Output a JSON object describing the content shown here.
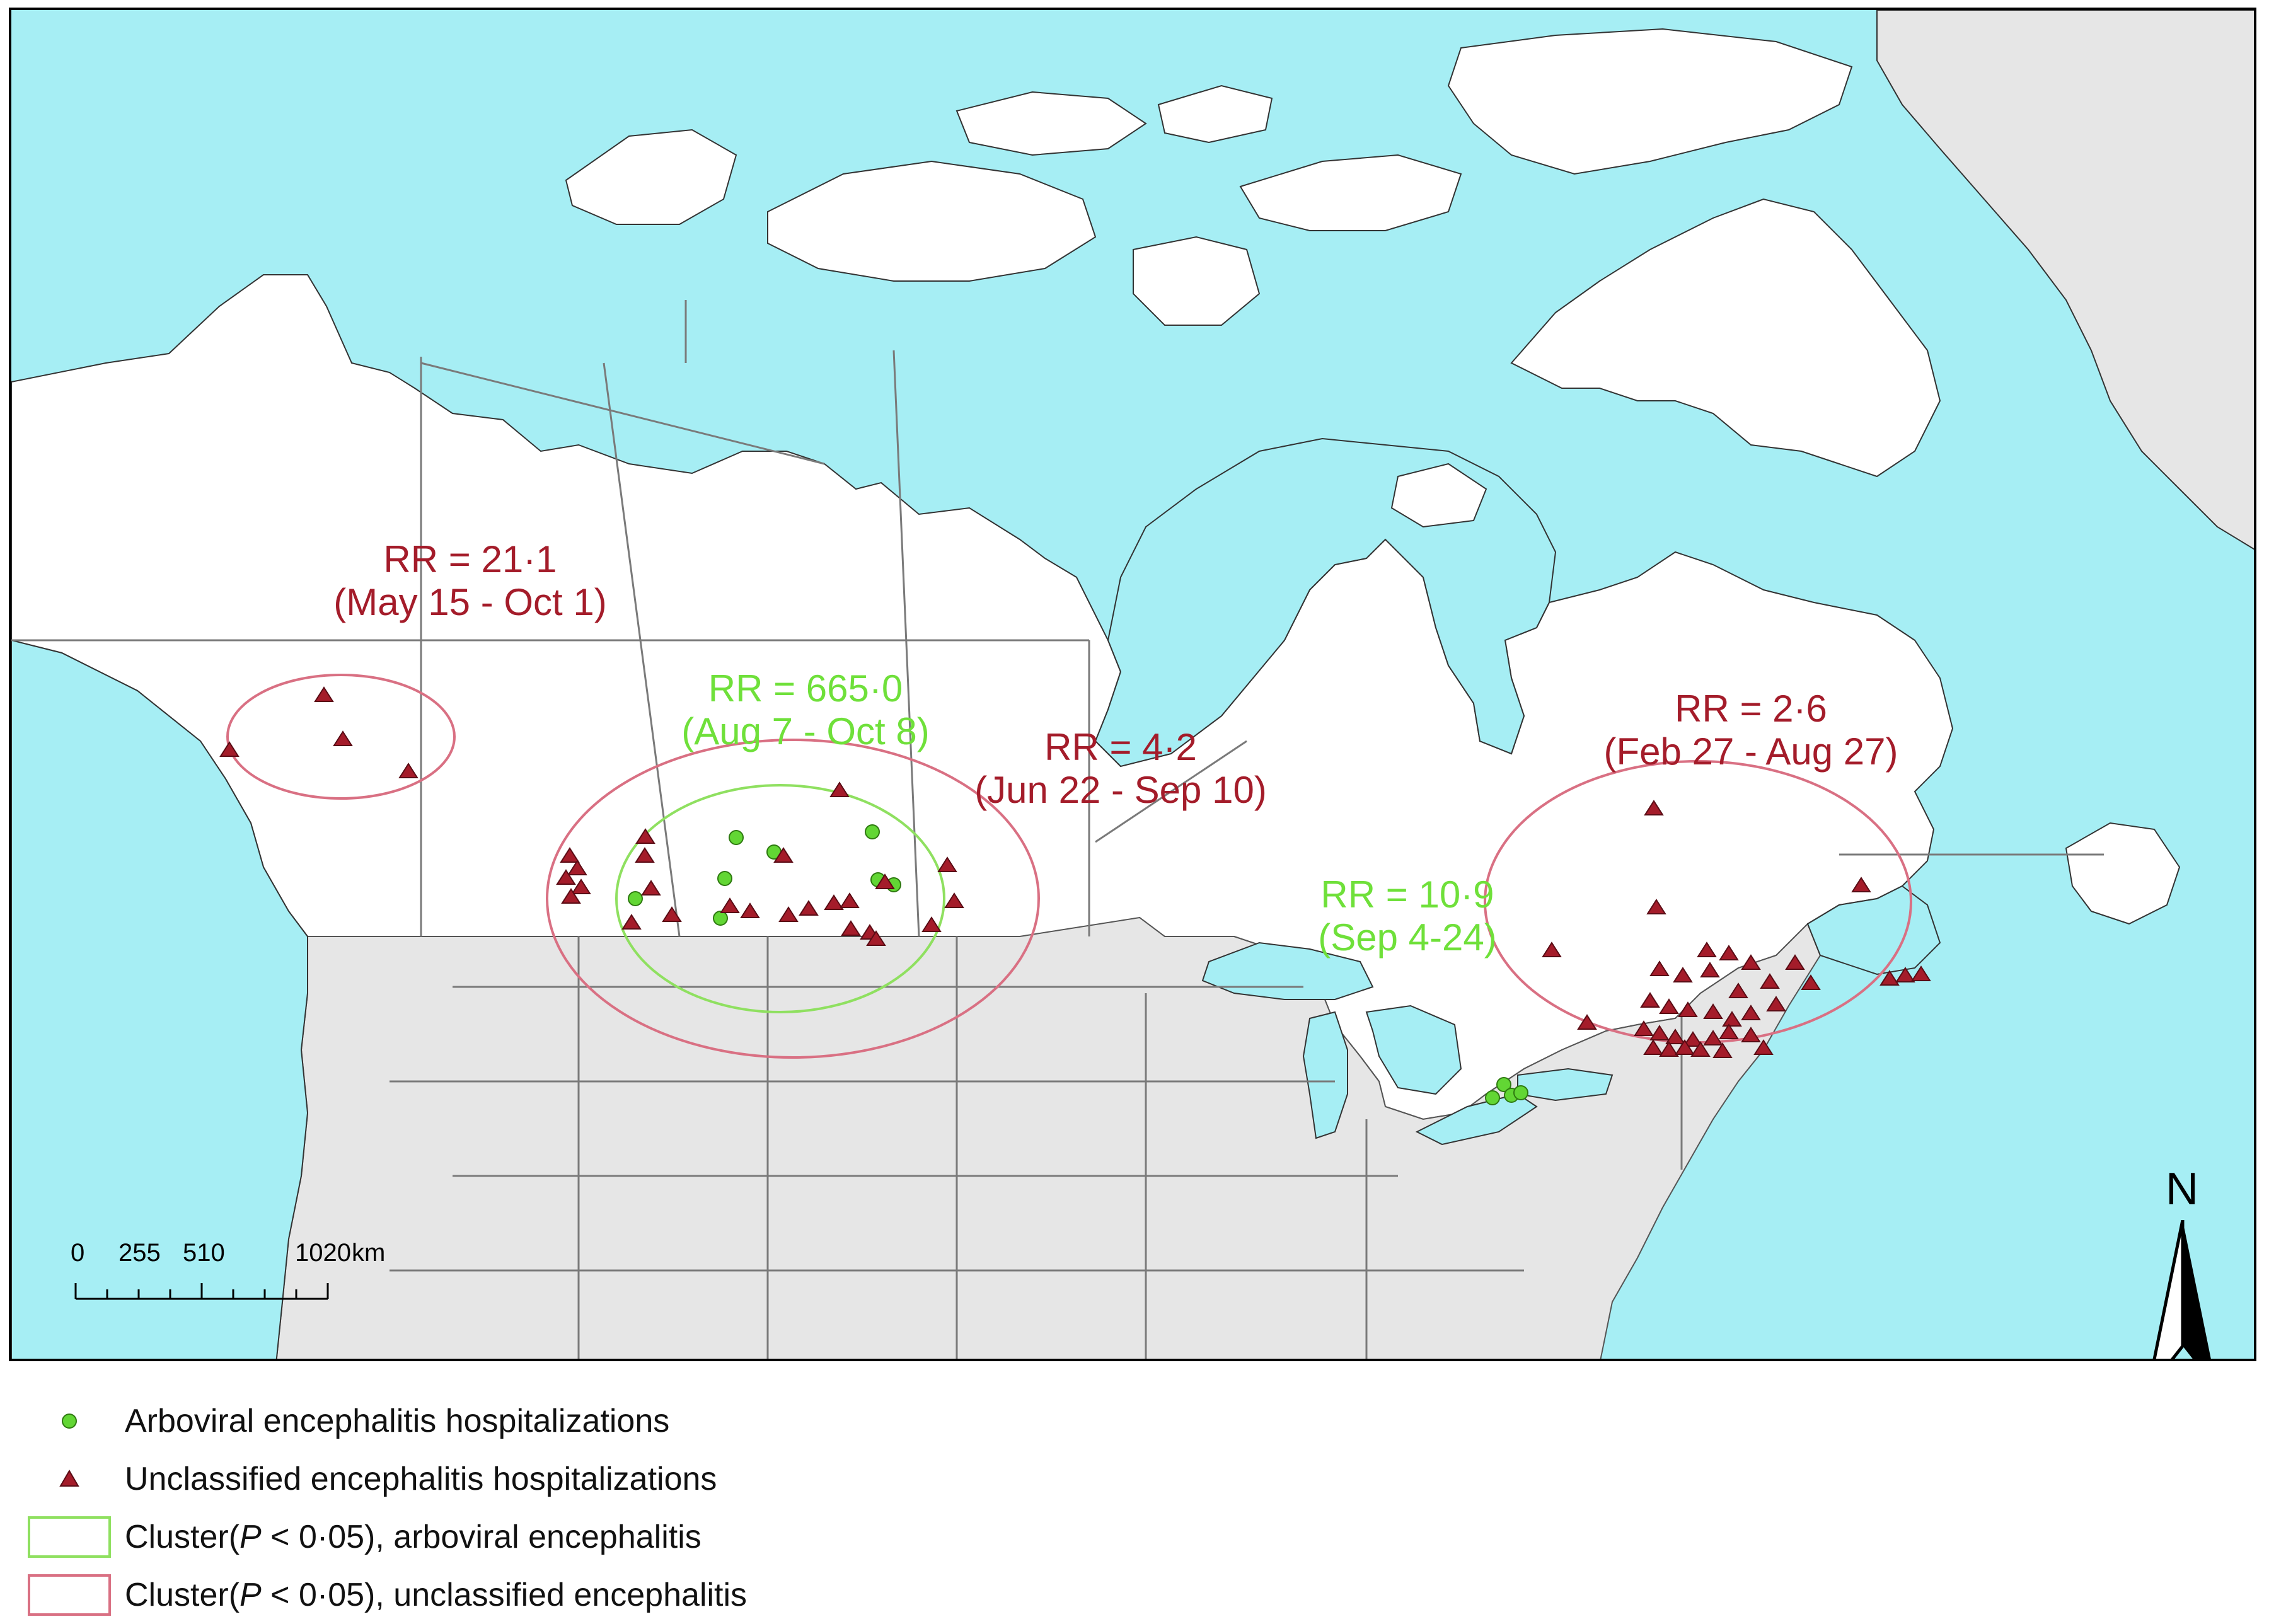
{
  "colors": {
    "water": "#a6eef4",
    "canada_land": "#ffffff",
    "us_land": "#e6e6e6",
    "boundary": "#7a7a7a",
    "arboviral": "#62d634",
    "unclassified": "#a41c2a",
    "cluster_arboviral": "#8fe060",
    "cluster_unclassified": "#d97083"
  },
  "annotations": [
    {
      "id": "yukon",
      "rr": "RR = 21·1",
      "period": "(May 15 - Oct 1)",
      "color": "red"
    },
    {
      "id": "prairies-arbo",
      "rr": "RR = 665·0",
      "period": "(Aug 7 - Oct 8)",
      "color": "green"
    },
    {
      "id": "prairies-unc",
      "rr": "RR = 4·2",
      "period": "(Jun 22 - Sep 10)",
      "color": "red"
    },
    {
      "id": "ontario-arbo",
      "rr": "RR = 10·9",
      "period": "(Sep 4-24)",
      "color": "green"
    },
    {
      "id": "quebec-unc",
      "rr": "RR = 2·6",
      "period": "(Feb 27 - Aug 27)",
      "color": "red"
    }
  ],
  "scale_bar": {
    "ticks": [
      "0",
      "255",
      "510",
      "1020"
    ],
    "unit": "km"
  },
  "north_arrow": {
    "label": "N"
  },
  "legend": {
    "arboviral_points": "Arboviral encephalitis hospitalizations",
    "unclassified_points": "Unclassified encephalitis hospitalizations",
    "arboviral_cluster_prefix": "Cluster(",
    "p_symbol": "P",
    "arboviral_cluster_suffix": " < 0·05), arboviral encephalitis",
    "unclassified_cluster_prefix": "Cluster(",
    "unclassified_cluster_suffix": " < 0·05), unclassified encephalitis"
  }
}
